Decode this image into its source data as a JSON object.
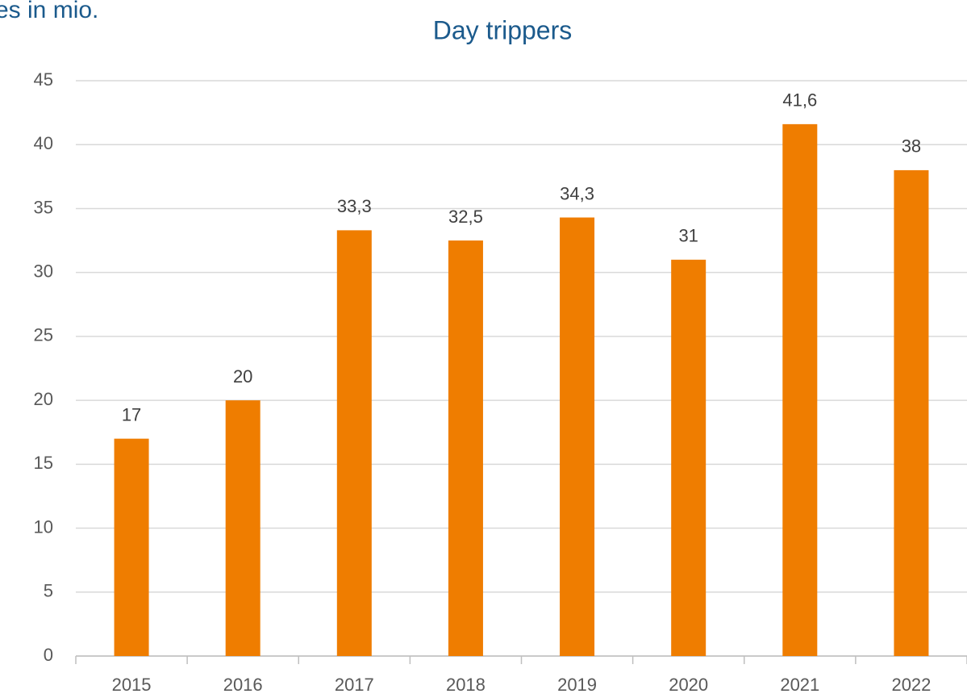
{
  "chart_data": {
    "type": "bar",
    "title": "Day trippers",
    "y_axis_label": "es in mio.",
    "categories": [
      "2015",
      "2016",
      "2017",
      "2018",
      "2019",
      "2020",
      "2021",
      "2022"
    ],
    "values": [
      17,
      20,
      33.3,
      32.5,
      34.3,
      31,
      41.6,
      38
    ],
    "value_labels": [
      "17",
      "20",
      "33,3",
      "32,5",
      "34,3",
      "31",
      "41,6",
      "38"
    ],
    "color": "#ef7d00",
    "ylim": [
      0,
      45
    ],
    "yticks": [
      0,
      5,
      10,
      15,
      20,
      25,
      30,
      35,
      40,
      45
    ],
    "grid": true
  }
}
